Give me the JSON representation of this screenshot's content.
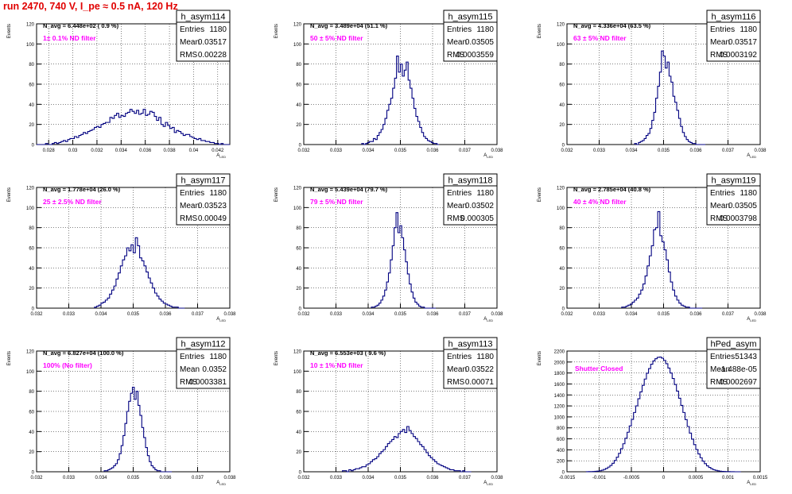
{
  "canvas": {
    "title": "run 2470,   740 V, I_pe ≈ 0.5 nA, 120 Hz",
    "title_color": "#e00000",
    "annotation_color": "#ff00ff",
    "histogram_color": "#000080"
  },
  "stats_labels": {
    "entries": "Entries",
    "mean": "Mean",
    "rms": "RMS"
  },
  "axes": {
    "ylabel": "Events",
    "xlabel": "A",
    "xlabel_sub": "LED"
  },
  "chart_data": [
    {
      "type": "bar",
      "name": "h_asym114",
      "navg": "N_avg = 6.448e+02 ( 0.9 %)",
      "filter": "1± 0.1% ND filter",
      "entries": "1180",
      "mean": "0.03517",
      "rms": "0.00228",
      "xlim": [
        0.027,
        0.043
      ],
      "ylim": [
        0,
        120
      ],
      "xticks": [
        "0.028",
        "0.03",
        "0.032",
        "0.034",
        "0.036",
        "0.038",
        "0.04",
        "0.042"
      ],
      "yticks": [
        "0",
        "20",
        "40",
        "60",
        "80",
        "100",
        "120"
      ],
      "bins": {
        "xmin": 0.027,
        "xmax": 0.043,
        "counts": [
          0,
          0,
          0,
          0,
          1,
          0,
          0,
          1,
          2,
          1,
          2,
          3,
          4,
          3,
          5,
          6,
          6,
          8,
          7,
          9,
          10,
          12,
          11,
          13,
          14,
          15,
          17,
          18,
          17,
          20,
          21,
          22,
          22,
          27,
          26,
          29,
          31,
          27,
          29,
          28,
          31,
          32,
          35,
          33,
          31,
          34,
          30,
          31,
          35,
          29,
          30,
          33,
          32,
          28,
          24,
          27,
          20,
          18,
          22,
          19,
          16,
          17,
          12,
          14,
          13,
          11,
          9,
          10,
          10,
          8,
          7,
          6,
          5,
          6,
          4,
          4,
          3,
          3,
          2,
          2,
          1,
          1,
          0,
          1,
          0,
          0,
          0
        ]
      }
    },
    {
      "type": "bar",
      "name": "h_asym115",
      "navg": "N_avg = 3.489e+04 (51.1 %)",
      "filter": "50 ± 5% ND filter",
      "entries": "1180",
      "mean": "0.03505",
      "rms": "0.0003559",
      "xlim": [
        0.032,
        0.038
      ],
      "ylim": [
        0,
        120
      ],
      "xticks": [
        "0.032",
        "0.033",
        "0.034",
        "0.035",
        "0.036",
        "0.037",
        "0.038"
      ],
      "yticks": [
        "0",
        "20",
        "40",
        "60",
        "80",
        "100",
        "120"
      ],
      "bins": {
        "xmin": 0.0338,
        "xmax": 0.0362,
        "counts": [
          1,
          0,
          1,
          2,
          3,
          3,
          6,
          5,
          9,
          12,
          15,
          20,
          26,
          34,
          40,
          46,
          56,
          66,
          88,
          72,
          80,
          68,
          74,
          82,
          64,
          56,
          46,
          36,
          28,
          23,
          17,
          12,
          8,
          6,
          4,
          3,
          2,
          1,
          1,
          0
        ]
      }
    },
    {
      "type": "bar",
      "name": "h_asym116",
      "navg": "N_avg = 4.336e+04 (63.5 %)",
      "filter": "63 ± 5% ND filter",
      "entries": "1180",
      "mean": "0.03517",
      "rms": "0.0003192",
      "xlim": [
        0.032,
        0.038
      ],
      "ylim": [
        0,
        120
      ],
      "xticks": [
        "0.032",
        "0.033",
        "0.034",
        "0.035",
        "0.036",
        "0.037",
        "0.038"
      ],
      "yticks": [
        "0",
        "20",
        "40",
        "60",
        "80",
        "100",
        "120"
      ],
      "bins": {
        "xmin": 0.0341,
        "xmax": 0.0363,
        "counts": [
          1,
          0,
          2,
          3,
          4,
          6,
          9,
          11,
          16,
          24,
          32,
          46,
          58,
          72,
          93,
          88,
          76,
          82,
          68,
          62,
          48,
          42,
          34,
          26,
          18,
          12,
          8,
          5,
          3,
          2,
          1,
          1,
          0,
          0,
          0,
          0,
          0
        ]
      }
    },
    {
      "type": "bar",
      "name": "h_asym117",
      "navg": "N_avg = 1.778e+04 (26.0 %)",
      "filter": "25 ± 2.5% ND filter",
      "entries": "1180",
      "mean": "0.03523",
      "rms": "0.00049",
      "xlim": [
        0.032,
        0.038
      ],
      "ylim": [
        0,
        120
      ],
      "xticks": [
        "0.032",
        "0.033",
        "0.034",
        "0.035",
        "0.036",
        "0.037",
        "0.038"
      ],
      "yticks": [
        "0",
        "20",
        "40",
        "60",
        "80",
        "100",
        "120"
      ],
      "bins": {
        "xmin": 0.0338,
        "xmax": 0.0366,
        "counts": [
          1,
          2,
          3,
          5,
          6,
          8,
          10,
          14,
          18,
          22,
          29,
          35,
          42,
          48,
          52,
          60,
          57,
          63,
          55,
          70,
          62,
          50,
          47,
          42,
          36,
          30,
          25,
          20,
          15,
          12,
          9,
          7,
          5,
          4,
          3,
          2,
          1,
          1,
          1,
          0,
          0,
          0
        ]
      }
    },
    {
      "type": "bar",
      "name": "h_asym118",
      "navg": "N_avg = 5.439e+04 (79.7 %)",
      "filter": "79 ± 5% ND filter",
      "entries": "1180",
      "mean": "0.03502",
      "rms": "0.000305",
      "xlim": [
        0.032,
        0.038
      ],
      "ylim": [
        0,
        120
      ],
      "xticks": [
        "0.032",
        "0.033",
        "0.034",
        "0.035",
        "0.036",
        "0.037",
        "0.038"
      ],
      "yticks": [
        "0",
        "20",
        "40",
        "60",
        "80",
        "100",
        "120"
      ],
      "bins": {
        "xmin": 0.0341,
        "xmax": 0.0361,
        "counts": [
          1,
          1,
          2,
          3,
          5,
          8,
          12,
          18,
          26,
          35,
          48,
          62,
          80,
          95,
          75,
          82,
          70,
          58,
          46,
          34,
          24,
          16,
          10,
          6,
          4,
          2,
          1,
          1,
          0,
          0,
          0,
          0,
          0,
          0
        ]
      }
    },
    {
      "type": "bar",
      "name": "h_asym119",
      "navg": "N_avg = 2.785e+04 (40.8 %)",
      "filter": "40 ± 4% ND filter",
      "entries": "1180",
      "mean": "0.03505",
      "rms": "0.0003798",
      "xlim": [
        0.032,
        0.038
      ],
      "ylim": [
        0,
        120
      ],
      "xticks": [
        "0.032",
        "0.033",
        "0.034",
        "0.035",
        "0.036",
        "0.037",
        "0.038"
      ],
      "yticks": [
        "0",
        "20",
        "40",
        "60",
        "80",
        "100",
        "120"
      ],
      "bins": {
        "xmin": 0.0337,
        "xmax": 0.0362,
        "counts": [
          1,
          1,
          2,
          3,
          4,
          6,
          8,
          10,
          14,
          18,
          24,
          32,
          42,
          52,
          62,
          78,
          80,
          96,
          72,
          66,
          58,
          48,
          36,
          26,
          18,
          12,
          8,
          5,
          3,
          2,
          1,
          1,
          0,
          0,
          0,
          0,
          0,
          0
        ]
      }
    },
    {
      "type": "bar",
      "name": "h_asym112",
      "navg": "N_avg = 6.827e+04 (100.0 %)",
      "filter": "100% (No filter)",
      "entries": "1180",
      "mean": "0.0352",
      "rms": "0.0003381",
      "xlim": [
        0.032,
        0.038
      ],
      "ylim": [
        0,
        120
      ],
      "xticks": [
        "0.032",
        "0.033",
        "0.034",
        "0.035",
        "0.036",
        "0.037",
        "0.038"
      ],
      "yticks": [
        "0",
        "20",
        "40",
        "60",
        "80",
        "100",
        "120"
      ],
      "bins": {
        "xmin": 0.0341,
        "xmax": 0.0362,
        "counts": [
          1,
          1,
          2,
          3,
          4,
          6,
          8,
          12,
          18,
          26,
          36,
          48,
          60,
          70,
          78,
          84,
          72,
          80,
          66,
          56,
          44,
          34,
          24,
          16,
          10,
          6,
          4,
          2,
          1,
          1,
          0,
          0,
          0,
          0,
          0,
          0
        ]
      }
    },
    {
      "type": "bar",
      "name": "h_asym113",
      "navg": "N_avg = 6.553e+03 ( 9.6 %)",
      "filter": "10 ± 1% ND filter",
      "entries": "1180",
      "mean": "0.03522",
      "rms": "0.00071",
      "xlim": [
        0.032,
        0.038
      ],
      "ylim": [
        0,
        120
      ],
      "xticks": [
        "0.032",
        "0.033",
        "0.034",
        "0.035",
        "0.036",
        "0.037",
        "0.038"
      ],
      "yticks": [
        "0",
        "20",
        "40",
        "60",
        "80",
        "100",
        "120"
      ],
      "bins": {
        "xmin": 0.0332,
        "xmax": 0.0372,
        "counts": [
          1,
          1,
          0,
          2,
          1,
          2,
          3,
          3,
          4,
          5,
          5,
          7,
          8,
          10,
          12,
          13,
          15,
          18,
          20,
          22,
          25,
          28,
          30,
          32,
          35,
          34,
          38,
          40,
          42,
          39,
          45,
          41,
          38,
          35,
          33,
          30,
          27,
          25,
          22,
          19,
          16,
          14,
          12,
          10,
          8,
          7,
          6,
          5,
          4,
          3,
          2,
          2,
          1,
          1,
          1,
          0,
          1,
          0,
          0,
          0
        ]
      }
    },
    {
      "type": "bar",
      "name": "hPed_asym",
      "navg": "",
      "filter": "Shutter Closed",
      "entries": "51343",
      "mean": "-1.488e-05",
      "rms": "0.0002697",
      "xlim": [
        -0.0015,
        0.0015
      ],
      "ylim": [
        0,
        2200
      ],
      "xticks": [
        "-0.0015",
        "-0.001",
        "-0.0005",
        "0",
        "0.0005",
        "0.001",
        "0.0015"
      ],
      "yticks": [
        "0",
        "200",
        "400",
        "600",
        "800",
        "1000",
        "1200",
        "1400",
        "1600",
        "1800",
        "2000",
        "2200"
      ],
      "bins": {
        "xmin": -0.0012,
        "xmax": 0.0012,
        "counts": [
          1,
          2,
          3,
          5,
          8,
          12,
          18,
          28,
          42,
          60,
          85,
          115,
          155,
          205,
          265,
          335,
          420,
          510,
          610,
          720,
          835,
          955,
          1080,
          1200,
          1330,
          1455,
          1575,
          1690,
          1795,
          1880,
          1960,
          2020,
          2060,
          2085,
          2090,
          2070,
          2030,
          1970,
          1890,
          1800,
          1700,
          1590,
          1470,
          1340,
          1210,
          1080,
          950,
          825,
          705,
          595,
          495,
          405,
          325,
          255,
          195,
          148,
          108,
          78,
          55,
          38,
          26,
          17,
          11,
          7,
          4,
          3,
          2,
          1,
          1,
          0,
          0,
          0
        ]
      }
    }
  ]
}
